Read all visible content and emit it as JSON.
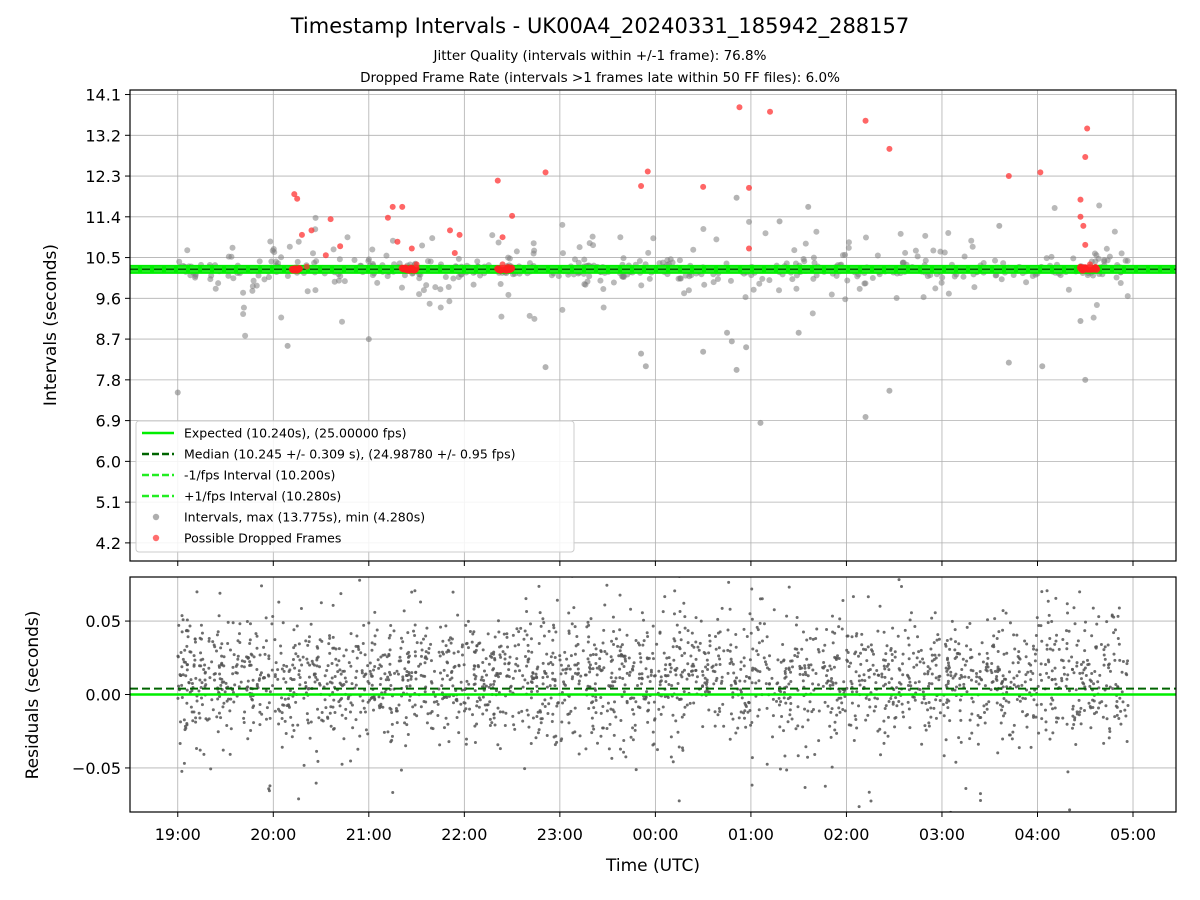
{
  "title": "Timestamp Intervals - UK00A4_20240331_185942_288157",
  "subtitle_1": "Jitter Quality (intervals within +/-1 frame): 76.8%",
  "subtitle_2": "Dropped Frame Rate (intervals >1 frames late within 50 FF files): 6.0%",
  "colors": {
    "expected": "#00ee00",
    "median": "#006400",
    "fps_band": "#22ee22",
    "intervals": "#808080",
    "dropped": "#ff3333",
    "residuals": "#555555"
  },
  "chart_data": [
    {
      "id": "intervals",
      "type": "scatter",
      "ylabel": "Intervals (seconds)",
      "xlabel": "",
      "yticks": [
        "4.2",
        "5.1",
        "6.0",
        "6.9",
        "7.8",
        "8.7",
        "9.6",
        "10.5",
        "11.4",
        "12.3",
        "13.2",
        "14.1"
      ],
      "ylim": [
        3.8,
        14.2
      ],
      "xlim_hours": [
        18.5,
        29.45
      ],
      "grid": true,
      "legend_position": "lower-left",
      "legend": [
        {
          "label": "Expected (10.240s), (25.00000 fps)",
          "style": "solid",
          "color": "#00ee00"
        },
        {
          "label": "Median (10.245 +/- 0.309 s), (24.98780 +/- 0.95 fps)",
          "style": "dashed",
          "color": "#006400"
        },
        {
          "label": "-1/fps Interval (10.200s)",
          "style": "dashed",
          "color": "#22ee22"
        },
        {
          "label": "+1/fps Interval (10.280s)",
          "style": "dashed",
          "color": "#22ee22"
        },
        {
          "label": "Intervals, max (13.775s), min (4.280s)",
          "style": "marker",
          "color": "#a0a0a0"
        },
        {
          "label": "Possible Dropped Frames",
          "style": "marker",
          "color": "#ff5555"
        }
      ],
      "reference_lines": {
        "expected": 10.24,
        "median": 10.245,
        "minus_one_fps": 10.2,
        "plus_one_fps": 10.28
      },
      "time_range_hours": [
        19.0,
        28.95
      ],
      "outlier_intervals": [
        {
          "t": 19.0,
          "v": 7.52
        },
        {
          "t": 20.15,
          "v": 8.55
        },
        {
          "t": 21.0,
          "v": 8.7
        },
        {
          "t": 22.85,
          "v": 8.08
        },
        {
          "t": 23.85,
          "v": 8.38
        },
        {
          "t": 23.9,
          "v": 8.1
        },
        {
          "t": 24.5,
          "v": 8.42
        },
        {
          "t": 24.75,
          "v": 8.84
        },
        {
          "t": 24.8,
          "v": 8.65
        },
        {
          "t": 24.85,
          "v": 8.02
        },
        {
          "t": 24.95,
          "v": 8.52
        },
        {
          "t": 25.1,
          "v": 6.85
        },
        {
          "t": 25.5,
          "v": 8.84
        },
        {
          "t": 26.2,
          "v": 6.98
        },
        {
          "t": 26.45,
          "v": 7.56
        },
        {
          "t": 27.7,
          "v": 8.18
        },
        {
          "t": 28.05,
          "v": 8.1
        },
        {
          "t": 28.5,
          "v": 7.8
        },
        {
          "t": 28.45,
          "v": 9.1
        },
        {
          "t": 25.3,
          "v": 11.3
        },
        {
          "t": 25.6,
          "v": 11.62
        },
        {
          "t": 24.85,
          "v": 11.82
        },
        {
          "t": 27.6,
          "v": 11.2
        }
      ],
      "dropped_frames": [
        {
          "t": 20.22,
          "v": 11.9
        },
        {
          "t": 20.25,
          "v": 11.8
        },
        {
          "t": 20.3,
          "v": 11.0
        },
        {
          "t": 20.4,
          "v": 11.1
        },
        {
          "t": 20.6,
          "v": 11.35
        },
        {
          "t": 20.7,
          "v": 10.75
        },
        {
          "t": 20.55,
          "v": 10.55
        },
        {
          "t": 21.2,
          "v": 11.38
        },
        {
          "t": 21.25,
          "v": 11.62
        },
        {
          "t": 21.35,
          "v": 11.62
        },
        {
          "t": 21.3,
          "v": 10.85
        },
        {
          "t": 21.45,
          "v": 10.7
        },
        {
          "t": 21.85,
          "v": 11.1
        },
        {
          "t": 21.95,
          "v": 11.0
        },
        {
          "t": 21.9,
          "v": 10.6
        },
        {
          "t": 22.35,
          "v": 12.2
        },
        {
          "t": 22.5,
          "v": 11.42
        },
        {
          "t": 22.4,
          "v": 10.95
        },
        {
          "t": 22.85,
          "v": 12.38
        },
        {
          "t": 23.85,
          "v": 12.08
        },
        {
          "t": 23.92,
          "v": 12.4
        },
        {
          "t": 24.5,
          "v": 12.06
        },
        {
          "t": 24.88,
          "v": 13.82
        },
        {
          "t": 24.98,
          "v": 12.04
        },
        {
          "t": 24.98,
          "v": 10.7
        },
        {
          "t": 25.2,
          "v": 13.72
        },
        {
          "t": 26.2,
          "v": 13.52
        },
        {
          "t": 26.45,
          "v": 12.9
        },
        {
          "t": 27.7,
          "v": 12.3
        },
        {
          "t": 28.03,
          "v": 12.38
        },
        {
          "t": 28.45,
          "v": 11.78
        },
        {
          "t": 28.45,
          "v": 11.4
        },
        {
          "t": 28.48,
          "v": 11.2
        },
        {
          "t": 28.5,
          "v": 12.72
        },
        {
          "t": 28.52,
          "v": 13.35
        },
        {
          "t": 28.5,
          "v": 10.78
        },
        {
          "t": 28.55,
          "v": 10.35
        },
        {
          "t": 20.35,
          "v": 10.3
        },
        {
          "t": 21.5,
          "v": 10.35
        },
        {
          "t": 22.4,
          "v": 10.35
        }
      ],
      "dropped_clusters": [
        {
          "t_start": 20.2,
          "t_end": 20.28,
          "v": 10.25
        },
        {
          "t_start": 21.35,
          "t_end": 21.5,
          "v": 10.25
        },
        {
          "t_start": 22.35,
          "t_end": 22.5,
          "v": 10.25
        },
        {
          "t_start": 28.45,
          "t_end": 28.62,
          "v": 10.25
        }
      ]
    },
    {
      "id": "residuals",
      "type": "scatter",
      "ylabel": "Residuals (seconds)",
      "xlabel": "Time (UTC)",
      "yticks": [
        "−0.05",
        "0.00",
        "0.05"
      ],
      "ytick_values": [
        -0.05,
        0.0,
        0.05
      ],
      "ylim": [
        -0.08,
        0.08
      ],
      "xlim_hours": [
        18.5,
        29.45
      ],
      "xticks": [
        "19:00",
        "20:00",
        "21:00",
        "22:00",
        "23:00",
        "00:00",
        "01:00",
        "02:00",
        "03:00",
        "04:00",
        "05:00"
      ],
      "xtick_hours": [
        19,
        20,
        21,
        22,
        23,
        24,
        25,
        26,
        27,
        28,
        29
      ],
      "grid": true,
      "reference_lines": {
        "zero": 0.0,
        "median_offset": 0.004
      },
      "residual_center": 0.01,
      "residual_spread": 0.022
    }
  ]
}
